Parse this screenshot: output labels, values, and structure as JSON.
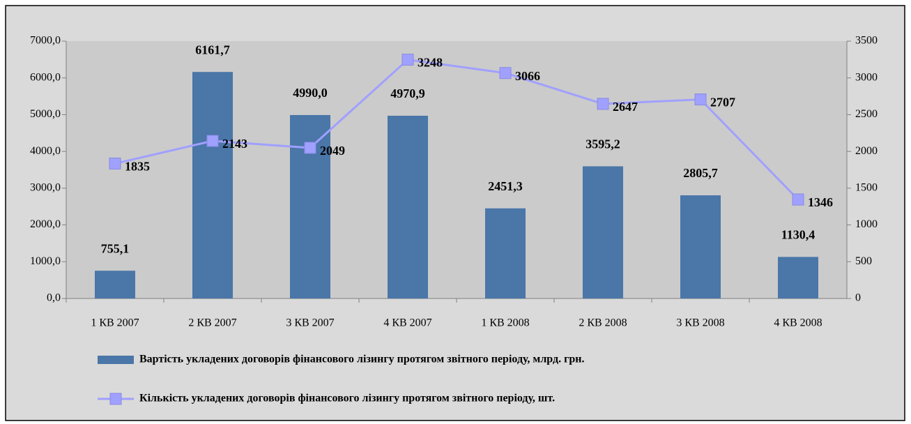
{
  "chart_data": {
    "type": "bar",
    "categories": [
      "1 КВ 2007",
      "2 КВ 2007",
      "3 КВ 2007",
      "4 КВ 2007",
      "1 КВ 2008",
      "2 КВ 2008",
      "3 КВ 2008",
      "4 КВ 2008"
    ],
    "series": [
      {
        "name": "Вартість укладених договорів фінансового лізингу протягом звітного періоду, млрд. грн.",
        "type": "bar",
        "color": "#4a76a8",
        "values": [
          755.1,
          6161.7,
          4990.0,
          4970.9,
          2451.3,
          3595.2,
          2805.7,
          1130.4
        ],
        "value_labels": [
          "755,1",
          "6161,7",
          "4990,0",
          "4970,9",
          "2451,3",
          "3595,2",
          "2805,7",
          "1130,4"
        ]
      },
      {
        "name": "Кількість укладених договорів фінансового лізингу протягом звітного періоду, шт.",
        "type": "line",
        "axis": "y2",
        "color": "#a0a0ff",
        "values": [
          1835,
          2143,
          2049,
          3248,
          3066,
          2647,
          2707,
          1346
        ]
      }
    ],
    "ylim": [
      0,
      7000
    ],
    "yticks": [
      {
        "value": 0,
        "label": "0,0"
      },
      {
        "value": 1000,
        "label": "1000,0"
      },
      {
        "value": 2000,
        "label": "2000,0"
      },
      {
        "value": 3000,
        "label": "3000,0"
      },
      {
        "value": 4000,
        "label": "4000,0"
      },
      {
        "value": 5000,
        "label": "5000,0"
      },
      {
        "value": 6000,
        "label": "6000,0"
      },
      {
        "value": 7000,
        "label": "7000,0"
      }
    ],
    "y2lim": [
      0,
      3500
    ],
    "y2ticks": [
      0,
      500,
      1000,
      1500,
      2000,
      2500,
      3000,
      3500
    ],
    "legend": "bottom"
  }
}
